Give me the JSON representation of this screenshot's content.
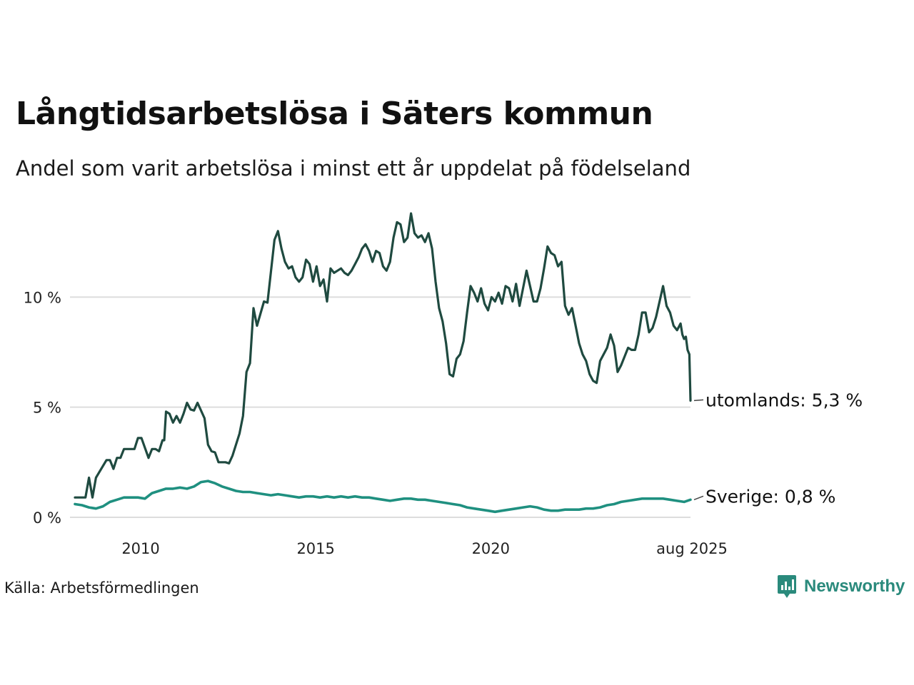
{
  "header": {
    "title": "Långtidsarbetslösa i Säters kommun",
    "subtitle": "Andel som varit arbetslösa i minst ett år uppdelat på födelseland"
  },
  "footer": {
    "source": "Källa: Arbetsförmedlingen",
    "brand": "Newsworthy"
  },
  "colors": {
    "utomlands": "#1f4a40",
    "sverige": "#1f9080",
    "gridline": "#dddddd",
    "brand": "#2a8a7c"
  },
  "chart_data": {
    "type": "line",
    "title": "Långtidsarbetslösa i Säters kommun",
    "subtitle": "Andel som varit arbetslösa i minst ett år uppdelat på födelseland",
    "xlabel": "",
    "ylabel": "",
    "x_ticks": [
      {
        "value": 2010,
        "label": "2010"
      },
      {
        "value": 2015,
        "label": "2015"
      },
      {
        "value": 2020,
        "label": "2020"
      },
      {
        "value": 2025.583,
        "label": "aug 2025"
      }
    ],
    "y_ticks": [
      {
        "value": 0,
        "label": "0 %"
      },
      {
        "value": 5,
        "label": "5 %"
      },
      {
        "value": 10,
        "label": "10 %"
      }
    ],
    "xlim": [
      2008.0,
      2025.583
    ],
    "ylim": [
      0,
      13.9
    ],
    "grid": true,
    "legend": "end-of-line labels",
    "series": [
      {
        "name": "utomlands",
        "end_label": "utomlands: 5,3 %",
        "color_key": "utomlands",
        "points": [
          [
            2008.0,
            0.9
          ],
          [
            2008.3,
            0.9
          ],
          [
            2008.4,
            1.8
          ],
          [
            2008.5,
            0.9
          ],
          [
            2008.6,
            1.8
          ],
          [
            2008.9,
            2.6
          ],
          [
            2009.0,
            2.6
          ],
          [
            2009.1,
            2.2
          ],
          [
            2009.2,
            2.7
          ],
          [
            2009.3,
            2.7
          ],
          [
            2009.4,
            3.1
          ],
          [
            2009.7,
            3.1
          ],
          [
            2009.8,
            3.6
          ],
          [
            2009.9,
            3.6
          ],
          [
            2010.1,
            2.7
          ],
          [
            2010.2,
            3.1
          ],
          [
            2010.3,
            3.1
          ],
          [
            2010.4,
            3.0
          ],
          [
            2010.5,
            3.5
          ],
          [
            2010.55,
            3.5
          ],
          [
            2010.6,
            4.8
          ],
          [
            2010.7,
            4.7
          ],
          [
            2010.8,
            4.3
          ],
          [
            2010.9,
            4.6
          ],
          [
            2011.0,
            4.3
          ],
          [
            2011.1,
            4.7
          ],
          [
            2011.2,
            5.2
          ],
          [
            2011.3,
            4.9
          ],
          [
            2011.4,
            4.85
          ],
          [
            2011.5,
            5.2
          ],
          [
            2011.7,
            4.5
          ],
          [
            2011.8,
            3.3
          ],
          [
            2011.9,
            3.0
          ],
          [
            2012.0,
            2.95
          ],
          [
            2012.1,
            2.5
          ],
          [
            2012.3,
            2.5
          ],
          [
            2012.4,
            2.45
          ],
          [
            2012.5,
            2.8
          ],
          [
            2012.7,
            3.8
          ],
          [
            2012.8,
            4.6
          ],
          [
            2012.9,
            6.6
          ],
          [
            2013.0,
            7.0
          ],
          [
            2013.1,
            9.5
          ],
          [
            2013.2,
            8.7
          ],
          [
            2013.4,
            9.8
          ],
          [
            2013.5,
            9.75
          ],
          [
            2013.7,
            12.6
          ],
          [
            2013.8,
            13.0
          ],
          [
            2013.9,
            12.2
          ],
          [
            2014.0,
            11.6
          ],
          [
            2014.1,
            11.3
          ],
          [
            2014.2,
            11.4
          ],
          [
            2014.3,
            10.9
          ],
          [
            2014.4,
            10.7
          ],
          [
            2014.5,
            10.9
          ],
          [
            2014.6,
            11.7
          ],
          [
            2014.7,
            11.5
          ],
          [
            2014.8,
            10.7
          ],
          [
            2014.9,
            11.4
          ],
          [
            2015.0,
            10.5
          ],
          [
            2015.1,
            10.8
          ],
          [
            2015.2,
            9.8
          ],
          [
            2015.3,
            11.3
          ],
          [
            2015.4,
            11.1
          ],
          [
            2015.5,
            11.2
          ],
          [
            2015.6,
            11.3
          ],
          [
            2015.7,
            11.1
          ],
          [
            2015.8,
            11.0
          ],
          [
            2015.9,
            11.2
          ],
          [
            2016.0,
            11.5
          ],
          [
            2016.1,
            11.8
          ],
          [
            2016.2,
            12.2
          ],
          [
            2016.3,
            12.4
          ],
          [
            2016.4,
            12.1
          ],
          [
            2016.5,
            11.6
          ],
          [
            2016.6,
            12.1
          ],
          [
            2016.7,
            12.0
          ],
          [
            2016.8,
            11.4
          ],
          [
            2016.9,
            11.2
          ],
          [
            2017.0,
            11.6
          ],
          [
            2017.1,
            12.7
          ],
          [
            2017.2,
            13.4
          ],
          [
            2017.3,
            13.3
          ],
          [
            2017.4,
            12.5
          ],
          [
            2017.5,
            12.7
          ],
          [
            2017.6,
            13.8
          ],
          [
            2017.7,
            12.9
          ],
          [
            2017.8,
            12.7
          ],
          [
            2017.9,
            12.8
          ],
          [
            2018.0,
            12.5
          ],
          [
            2018.1,
            12.9
          ],
          [
            2018.2,
            12.2
          ],
          [
            2018.3,
            10.7
          ],
          [
            2018.4,
            9.5
          ],
          [
            2018.5,
            8.9
          ],
          [
            2018.6,
            7.9
          ],
          [
            2018.7,
            6.5
          ],
          [
            2018.8,
            6.4
          ],
          [
            2018.9,
            7.2
          ],
          [
            2019.0,
            7.4
          ],
          [
            2019.1,
            8.0
          ],
          [
            2019.2,
            9.3
          ],
          [
            2019.3,
            10.5
          ],
          [
            2019.4,
            10.2
          ],
          [
            2019.5,
            9.8
          ],
          [
            2019.6,
            10.4
          ],
          [
            2019.7,
            9.7
          ],
          [
            2019.8,
            9.4
          ],
          [
            2019.9,
            10.0
          ],
          [
            2020.0,
            9.8
          ],
          [
            2020.1,
            10.2
          ],
          [
            2020.2,
            9.7
          ],
          [
            2020.3,
            10.5
          ],
          [
            2020.4,
            10.4
          ],
          [
            2020.5,
            9.8
          ],
          [
            2020.6,
            10.6
          ],
          [
            2020.7,
            9.6
          ],
          [
            2020.8,
            10.4
          ],
          [
            2020.9,
            11.2
          ],
          [
            2021.0,
            10.5
          ],
          [
            2021.1,
            9.8
          ],
          [
            2021.2,
            9.8
          ],
          [
            2021.3,
            10.4
          ],
          [
            2021.4,
            11.3
          ],
          [
            2021.5,
            12.3
          ],
          [
            2021.6,
            12.0
          ],
          [
            2021.7,
            11.9
          ],
          [
            2021.8,
            11.4
          ],
          [
            2021.9,
            11.6
          ],
          [
            2022.0,
            9.6
          ],
          [
            2022.1,
            9.2
          ],
          [
            2022.2,
            9.5
          ],
          [
            2022.3,
            8.7
          ],
          [
            2022.4,
            7.9
          ],
          [
            2022.5,
            7.4
          ],
          [
            2022.6,
            7.1
          ],
          [
            2022.7,
            6.5
          ],
          [
            2022.8,
            6.2
          ],
          [
            2022.9,
            6.1
          ],
          [
            2023.0,
            7.1
          ],
          [
            2023.1,
            7.4
          ],
          [
            2023.2,
            7.7
          ],
          [
            2023.3,
            8.3
          ],
          [
            2023.4,
            7.8
          ],
          [
            2023.5,
            6.6
          ],
          [
            2023.6,
            6.9
          ],
          [
            2023.7,
            7.3
          ],
          [
            2023.8,
            7.7
          ],
          [
            2023.9,
            7.6
          ],
          [
            2024.0,
            7.6
          ],
          [
            2024.1,
            8.3
          ],
          [
            2024.2,
            9.3
          ],
          [
            2024.3,
            9.3
          ],
          [
            2024.4,
            8.4
          ],
          [
            2024.5,
            8.6
          ],
          [
            2024.6,
            9.1
          ],
          [
            2024.7,
            9.8
          ],
          [
            2024.8,
            10.5
          ],
          [
            2024.9,
            9.6
          ],
          [
            2025.0,
            9.3
          ],
          [
            2025.1,
            8.7
          ],
          [
            2025.2,
            8.5
          ],
          [
            2025.3,
            8.8
          ],
          [
            2025.35,
            8.3
          ],
          [
            2025.4,
            8.1
          ],
          [
            2025.45,
            8.2
          ],
          [
            2025.5,
            7.6
          ],
          [
            2025.55,
            7.4
          ],
          [
            2025.583,
            5.3
          ]
        ]
      },
      {
        "name": "Sverige",
        "end_label": "Sverige: 0,8 %",
        "color_key": "sverige",
        "points": [
          [
            2008.0,
            0.6
          ],
          [
            2008.2,
            0.55
          ],
          [
            2008.4,
            0.45
          ],
          [
            2008.6,
            0.4
          ],
          [
            2008.8,
            0.5
          ],
          [
            2009.0,
            0.7
          ],
          [
            2009.2,
            0.8
          ],
          [
            2009.4,
            0.9
          ],
          [
            2009.6,
            0.9
          ],
          [
            2009.8,
            0.9
          ],
          [
            2010.0,
            0.85
          ],
          [
            2010.2,
            1.1
          ],
          [
            2010.4,
            1.2
          ],
          [
            2010.6,
            1.3
          ],
          [
            2010.8,
            1.3
          ],
          [
            2011.0,
            1.35
          ],
          [
            2011.2,
            1.3
          ],
          [
            2011.4,
            1.4
          ],
          [
            2011.6,
            1.6
          ],
          [
            2011.8,
            1.65
          ],
          [
            2012.0,
            1.55
          ],
          [
            2012.2,
            1.4
          ],
          [
            2012.4,
            1.3
          ],
          [
            2012.6,
            1.2
          ],
          [
            2012.8,
            1.15
          ],
          [
            2013.0,
            1.15
          ],
          [
            2013.2,
            1.1
          ],
          [
            2013.4,
            1.05
          ],
          [
            2013.6,
            1.0
          ],
          [
            2013.8,
            1.05
          ],
          [
            2014.0,
            1.0
          ],
          [
            2014.2,
            0.95
          ],
          [
            2014.4,
            0.9
          ],
          [
            2014.6,
            0.95
          ],
          [
            2014.8,
            0.95
          ],
          [
            2015.0,
            0.9
          ],
          [
            2015.2,
            0.95
          ],
          [
            2015.4,
            0.9
          ],
          [
            2015.6,
            0.95
          ],
          [
            2015.8,
            0.9
          ],
          [
            2016.0,
            0.95
          ],
          [
            2016.2,
            0.9
          ],
          [
            2016.4,
            0.9
          ],
          [
            2016.6,
            0.85
          ],
          [
            2016.8,
            0.8
          ],
          [
            2017.0,
            0.75
          ],
          [
            2017.2,
            0.8
          ],
          [
            2017.4,
            0.85
          ],
          [
            2017.6,
            0.85
          ],
          [
            2017.8,
            0.8
          ],
          [
            2018.0,
            0.8
          ],
          [
            2018.2,
            0.75
          ],
          [
            2018.4,
            0.7
          ],
          [
            2018.6,
            0.65
          ],
          [
            2018.8,
            0.6
          ],
          [
            2019.0,
            0.55
          ],
          [
            2019.2,
            0.45
          ],
          [
            2019.4,
            0.4
          ],
          [
            2019.6,
            0.35
          ],
          [
            2019.8,
            0.3
          ],
          [
            2020.0,
            0.25
          ],
          [
            2020.2,
            0.3
          ],
          [
            2020.4,
            0.35
          ],
          [
            2020.6,
            0.4
          ],
          [
            2020.8,
            0.45
          ],
          [
            2021.0,
            0.5
          ],
          [
            2021.2,
            0.45
          ],
          [
            2021.4,
            0.35
          ],
          [
            2021.6,
            0.3
          ],
          [
            2021.8,
            0.3
          ],
          [
            2022.0,
            0.35
          ],
          [
            2022.2,
            0.35
          ],
          [
            2022.4,
            0.35
          ],
          [
            2022.6,
            0.4
          ],
          [
            2022.8,
            0.4
          ],
          [
            2023.0,
            0.45
          ],
          [
            2023.2,
            0.55
          ],
          [
            2023.4,
            0.6
          ],
          [
            2023.6,
            0.7
          ],
          [
            2023.8,
            0.75
          ],
          [
            2024.0,
            0.8
          ],
          [
            2024.2,
            0.85
          ],
          [
            2024.4,
            0.85
          ],
          [
            2024.6,
            0.85
          ],
          [
            2024.8,
            0.85
          ],
          [
            2025.0,
            0.8
          ],
          [
            2025.2,
            0.75
          ],
          [
            2025.4,
            0.7
          ],
          [
            2025.583,
            0.8
          ]
        ]
      }
    ]
  }
}
